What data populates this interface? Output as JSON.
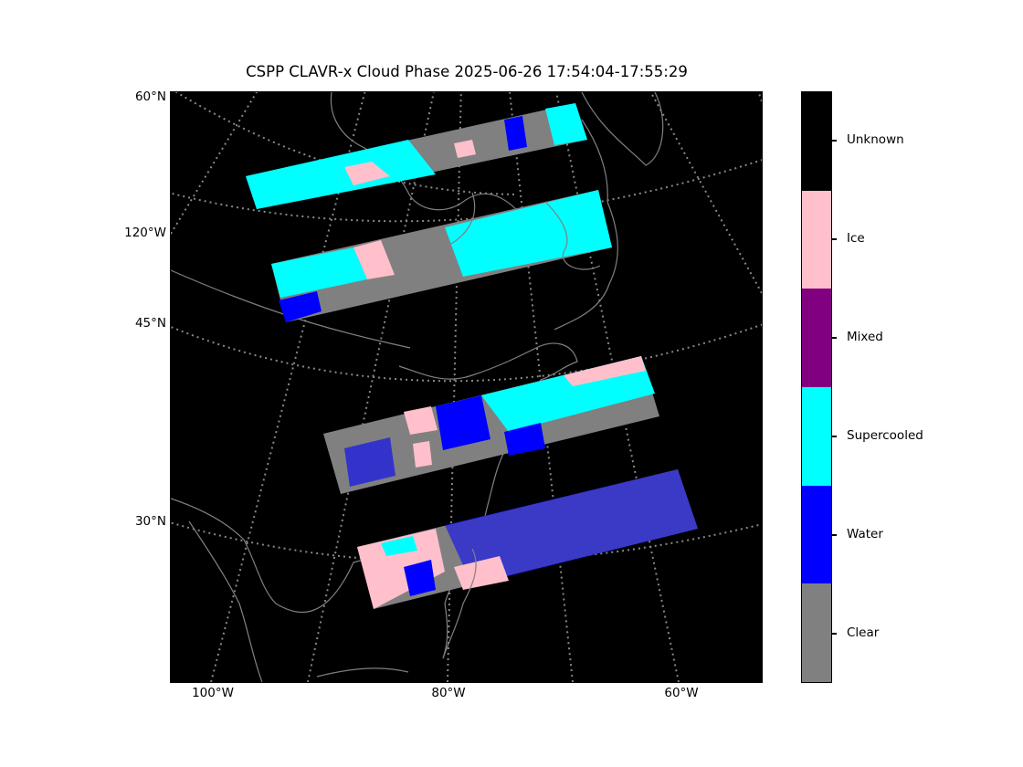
{
  "title": "CSPP CLAVR-x Cloud Phase 2025-06-26 17:54:04-17:55:29",
  "lat_labels": [
    "60°N",
    "120°W",
    "45°N",
    "30°N"
  ],
  "lon_labels": [
    "100°W",
    "80°W",
    "60°W"
  ],
  "colorbar": {
    "categories": [
      {
        "label": "Unknown",
        "color": "#000000"
      },
      {
        "label": "Ice",
        "color": "#ffc0cb"
      },
      {
        "label": "Mixed",
        "color": "#800080"
      },
      {
        "label": "Supercooled",
        "color": "#00ffff"
      },
      {
        "label": "Water",
        "color": "#0000ff"
      },
      {
        "label": "Clear",
        "color": "#808080"
      }
    ]
  },
  "map": {
    "background_color": "#000000",
    "coastline_color": "#808080",
    "gridline_color": "#a0a0a0"
  }
}
